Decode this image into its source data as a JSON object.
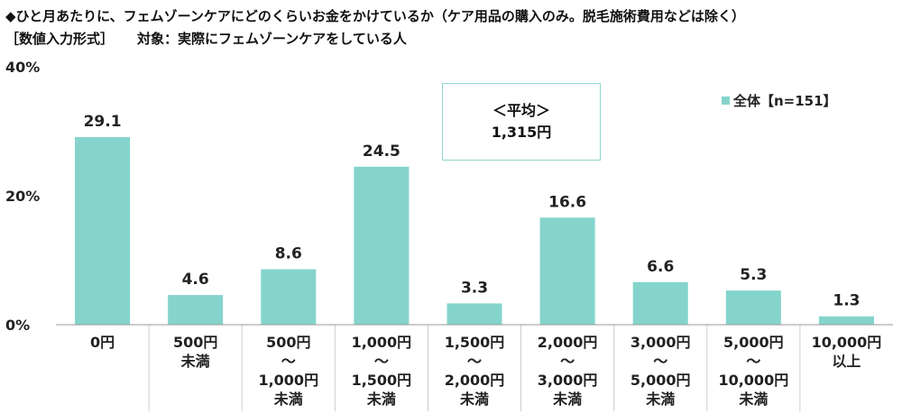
{
  "header": {
    "title": "◆ひと月あたりに、フェムゾーンケアにどのくらいお金をかけているか（ケア用品の購入のみ。脱毛施術費用などは除く）",
    "format": "［数値入力形式］",
    "target": "対象：実際にフェムゾーンケアをしている人"
  },
  "average_box": {
    "label": "＜平均＞",
    "value": "1,315円"
  },
  "colors": {
    "bar": "#84d4cc",
    "axis": "#999999",
    "divider": "#cccccc",
    "avg_border": "#8fd6cf"
  },
  "chart_data": {
    "type": "bar",
    "categories": [
      [
        "0円"
      ],
      [
        "500円",
        "未満"
      ],
      [
        "500円",
        "～",
        "1,000円",
        "未満"
      ],
      [
        "1,000円",
        "～",
        "1,500円",
        "未満"
      ],
      [
        "1,500円",
        "～",
        "2,000円",
        "未満"
      ],
      [
        "2,000円",
        "～",
        "3,000円",
        "未満"
      ],
      [
        "3,000円",
        "～",
        "5,000円",
        "未満"
      ],
      [
        "5,000円",
        "～",
        "10,000円",
        "未満"
      ],
      [
        "10,000円",
        "以上"
      ]
    ],
    "series": [
      {
        "name": "全体【n=151】",
        "values": [
          29.1,
          4.6,
          8.6,
          24.5,
          3.3,
          16.6,
          6.6,
          5.3,
          1.3
        ]
      }
    ],
    "value_labels": [
      "29.1",
      "4.6",
      "8.6",
      "24.5",
      "3.3",
      "16.6",
      "6.6",
      "5.3",
      "1.3"
    ],
    "yticks": [
      0,
      20,
      40
    ],
    "ytick_labels": [
      "0%",
      "20%",
      "40%"
    ],
    "ylim": [
      0,
      40
    ],
    "legend_position": "top-right",
    "grid": false
  }
}
